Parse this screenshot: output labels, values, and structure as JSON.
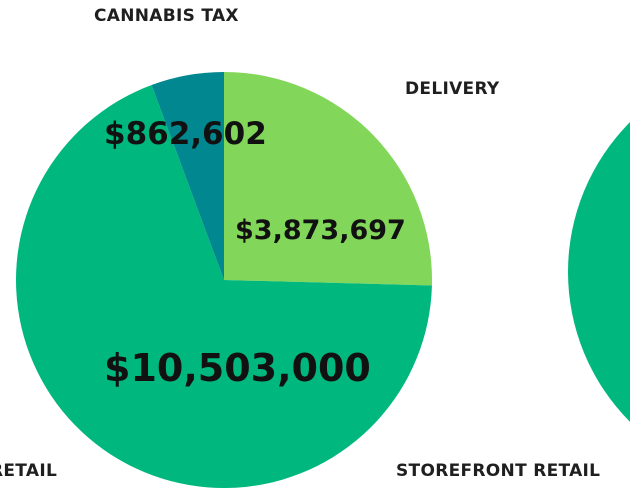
{
  "chart_data": [
    {
      "type": "pie",
      "title": "",
      "slices": [
        {
          "label": "DELIVERY",
          "value": 3873697,
          "display_value": "$3,873,697",
          "color": "#82d75a"
        },
        {
          "label": "STOREFRONT RETAIL",
          "value": 10503000,
          "display_value": "$10,503,000",
          "color": "#00b87e"
        },
        {
          "label": "CANNABIS TAX",
          "value": 862602,
          "display_value": "$862,602",
          "color": "#00878f"
        }
      ],
      "start_angle_deg": 0,
      "direction": "clockwise"
    },
    {
      "type": "pie",
      "title": "",
      "partial_visible": true,
      "slices": [
        {
          "label": "",
          "value": null,
          "color": "#00b87e"
        }
      ]
    }
  ],
  "labels": {
    "cannabis_tax": "CANNABIS TAX",
    "delivery": "DELIVERY",
    "storefront_retail": "STOREFRONT RETAIL",
    "left_retail_fragment": "RETAIL"
  }
}
